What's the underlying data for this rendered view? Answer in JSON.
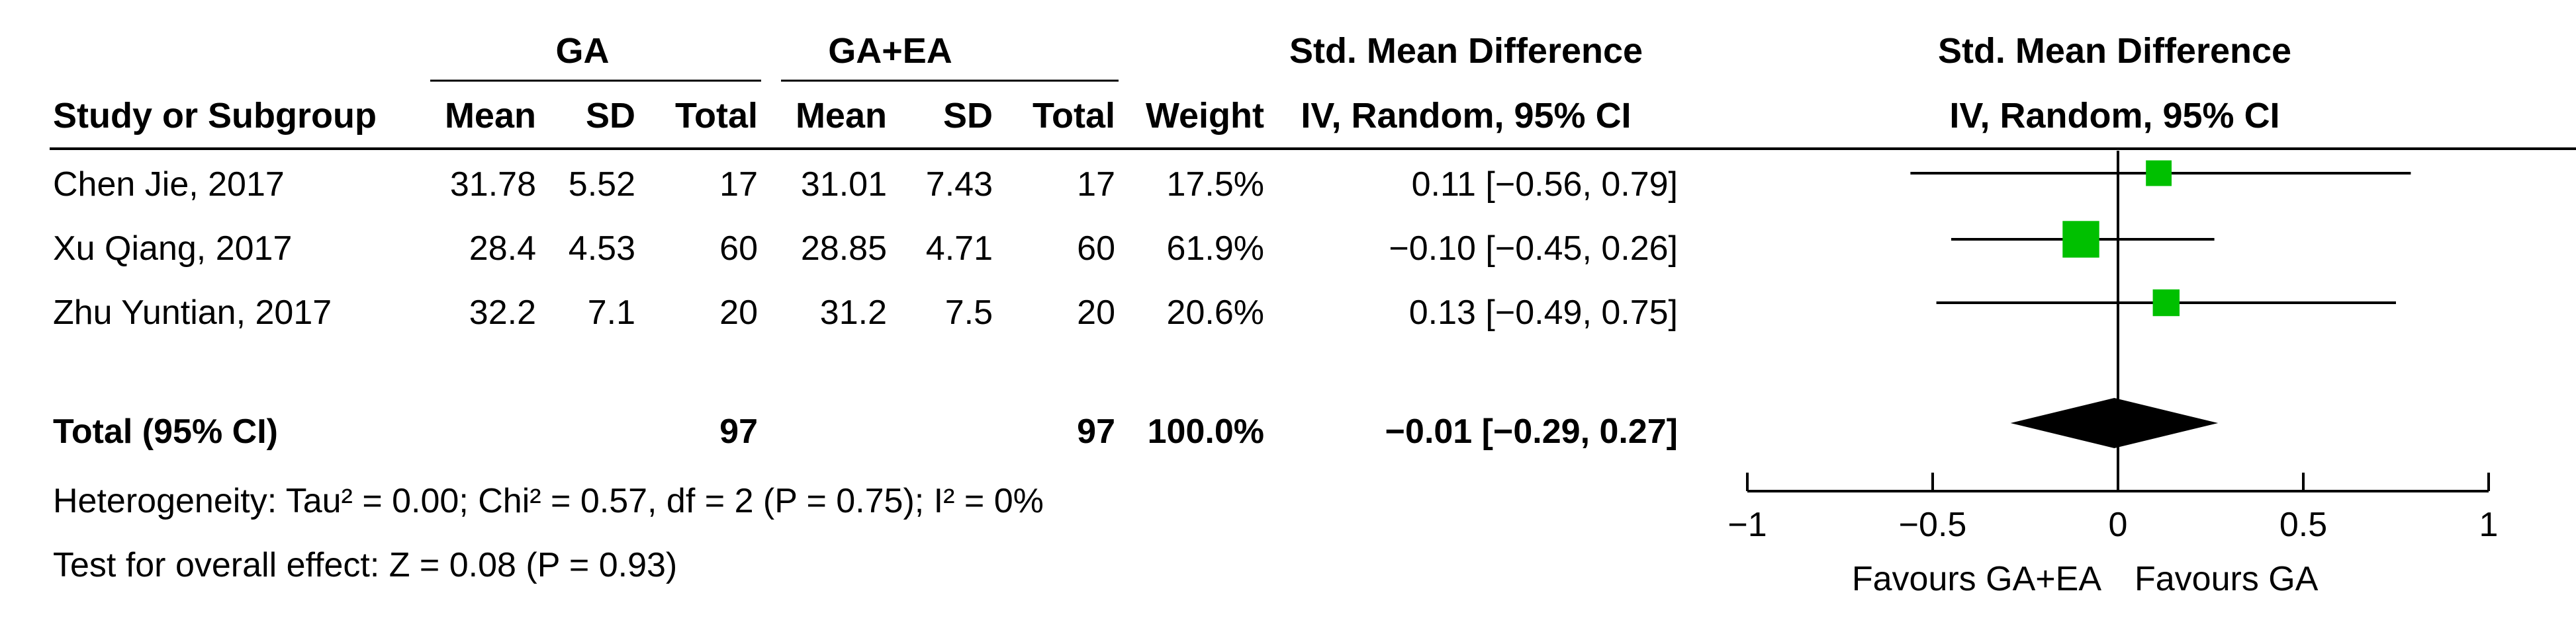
{
  "chart_data": {
    "type": "forest",
    "header": {
      "group1": "GA",
      "group2": "GA+EA",
      "effect_table": "Std. Mean Difference",
      "effect_plot": "Std. Mean Difference",
      "study_col": "Study or Subgroup",
      "mean": "Mean",
      "sd": "SD",
      "total": "Total",
      "weight": "Weight",
      "method_table": "IV, Random, 95% CI",
      "method_plot": "IV, Random, 95% CI"
    },
    "studies": [
      {
        "name": "Chen Jie, 2017",
        "mean1": "31.78",
        "sd1": "5.52",
        "total1": "17",
        "mean2": "31.01",
        "sd2": "7.43",
        "total2": "17",
        "weight": "17.5%",
        "ci_text": "0.11 [−0.56, 0.79]",
        "estimate": 0.11,
        "lower": -0.56,
        "upper": 0.79,
        "weight_value": 17.5
      },
      {
        "name": "Xu Qiang, 2017",
        "mean1": "28.4",
        "sd1": "4.53",
        "total1": "60",
        "mean2": "28.85",
        "sd2": "4.71",
        "total2": "60",
        "weight": "61.9%",
        "ci_text": "−0.10 [−0.45, 0.26]",
        "estimate": -0.1,
        "lower": -0.45,
        "upper": 0.26,
        "weight_value": 61.9
      },
      {
        "name": "Zhu Yuntian, 2017",
        "mean1": "32.2",
        "sd1": "7.1",
        "total1": "20",
        "mean2": "31.2",
        "sd2": "7.5",
        "total2": "20",
        "weight": "20.6%",
        "ci_text": "0.13 [−0.49, 0.75]",
        "estimate": 0.13,
        "lower": -0.49,
        "upper": 0.75,
        "weight_value": 20.6
      }
    ],
    "total": {
      "label": "Total (95% CI)",
      "total1": "97",
      "total2": "97",
      "weight": "100.0%",
      "ci_text": "−0.01 [−0.29, 0.27]",
      "estimate": -0.01,
      "lower": -0.29,
      "upper": 0.27
    },
    "heterogeneity": "Heterogeneity: Tau² = 0.00; Chi² = 0.57, df = 2 (P = 0.75); I² = 0%",
    "overall_effect": "Test for overall effect: Z = 0.08 (P = 0.93)",
    "x_axis": {
      "ticks": [
        -1,
        -0.5,
        0,
        0.5,
        1
      ],
      "tick_labels": [
        "−1",
        "−0.5",
        "0",
        "0.5",
        "1"
      ],
      "xlim": [
        -1,
        1
      ]
    },
    "favours_left": "Favours GA+EA",
    "favours_right": "Favours GA",
    "colors": {
      "square": "#00c000",
      "diamond": "#000000",
      "line": "#000000"
    }
  }
}
